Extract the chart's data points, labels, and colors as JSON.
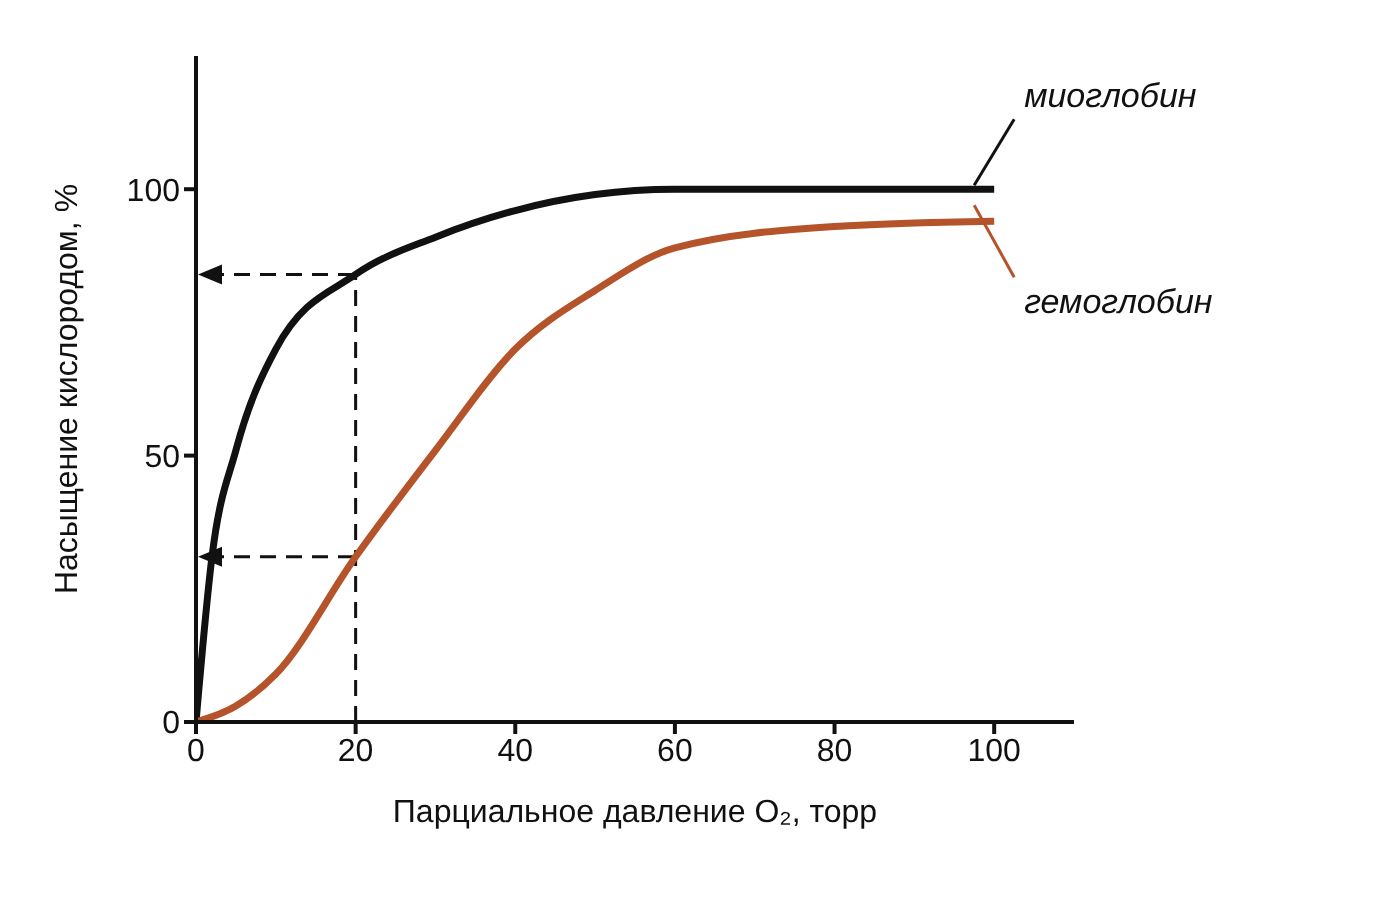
{
  "chart_data": {
    "type": "line",
    "xlabel": "Парциальное давление O₂, торр",
    "ylabel": "Насыщение кислородом, %",
    "xlim": [
      0,
      110
    ],
    "xticks": [
      0,
      20,
      40,
      60,
      80,
      100
    ],
    "ylim": [
      0,
      125
    ],
    "yticks": [
      0,
      50,
      100
    ],
    "grid": false,
    "legend": "right",
    "marker": "none",
    "line_style": "solid",
    "series": [
      {
        "name": "миоглобин",
        "color": "#111111",
        "x": [
          0,
          2,
          5,
          10,
          20,
          30,
          40,
          50,
          60,
          80,
          100
        ],
        "values": [
          0,
          31,
          51,
          70,
          84,
          91,
          96,
          99,
          100,
          100,
          100
        ]
      },
      {
        "name": "гемоглобин",
        "color": "#b5532a",
        "x": [
          0,
          5,
          10,
          20,
          30,
          40,
          50,
          60,
          80,
          100
        ],
        "values": [
          0,
          3,
          9,
          31,
          51,
          70,
          81,
          89,
          93,
          94
        ]
      }
    ],
    "ref_lines": [
      {
        "axis": "x",
        "value": 20,
        "line_style": "dashed"
      }
    ]
  }
}
